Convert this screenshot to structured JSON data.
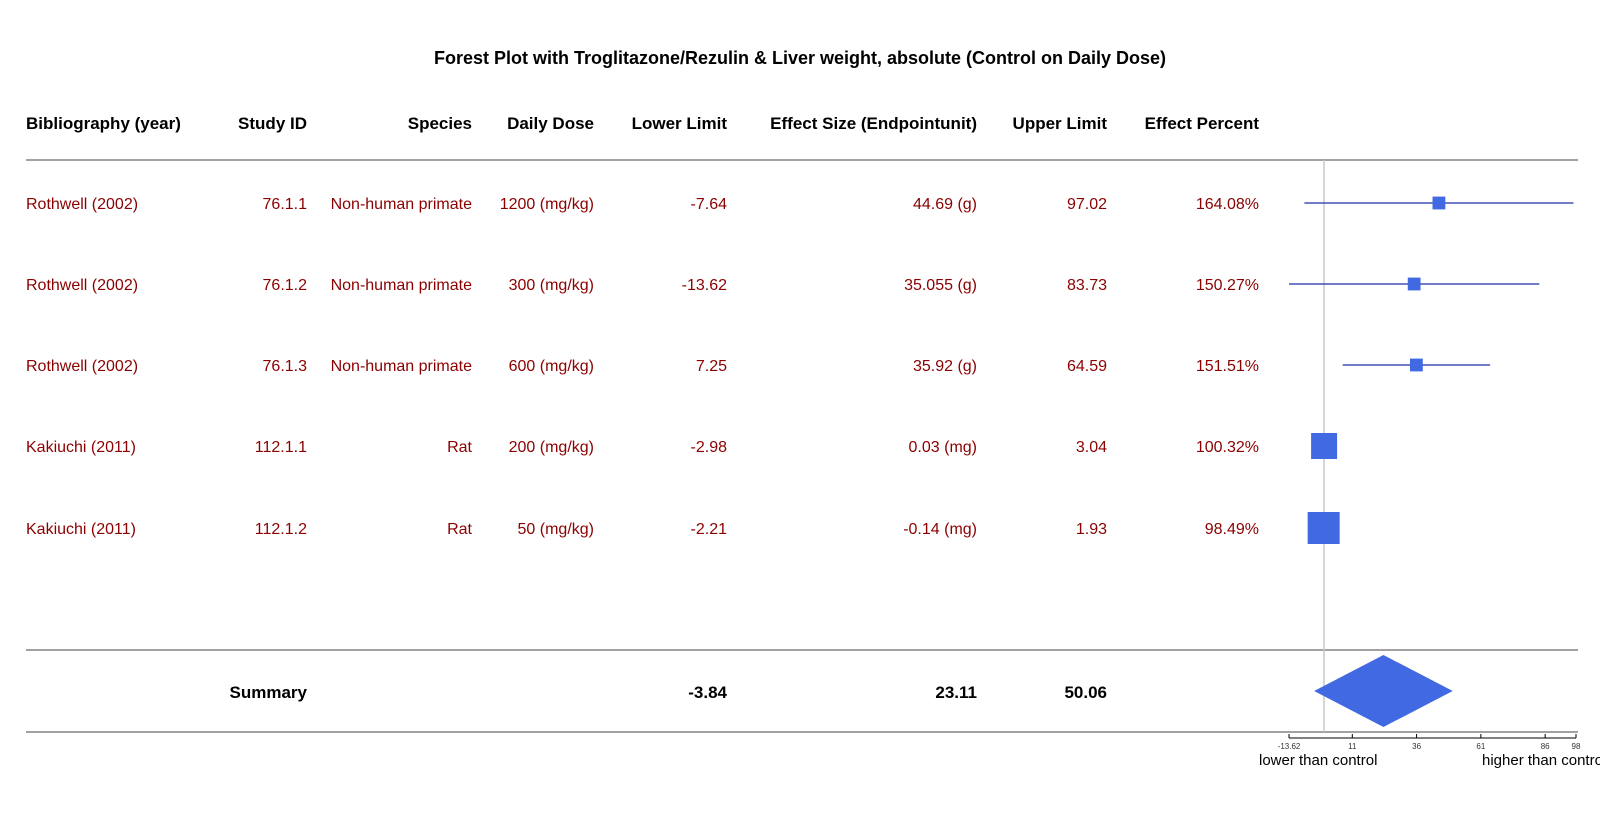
{
  "chart_data": {
    "type": "forest",
    "title": "Forest Plot with Troglitazone/Rezulin & Liver weight, absolute (Control on Daily Dose)",
    "columns": [
      "Bibliography (year)",
      "Study ID",
      "Species",
      "Daily Dose",
      "Lower Limit",
      "Effect Size (Endpointunit)",
      "Upper Limit",
      "Effect Percent"
    ],
    "rows": [
      {
        "bibliography": "Rothwell (2002)",
        "study_id": "76.1.1",
        "species": "Non-human primate",
        "daily_dose": "1200 (mg/kg)",
        "lower": "-7.64",
        "effect": "44.69 (g)",
        "upper": "97.02",
        "percent": "164.08%",
        "lower_value": -7.64,
        "effect_value": 44.69,
        "upper_value": 97.02,
        "weight": 0.2
      },
      {
        "bibliography": "Rothwell (2002)",
        "study_id": "76.1.2",
        "species": "Non-human primate",
        "daily_dose": "300 (mg/kg)",
        "lower": "-13.62",
        "effect": "35.055 (g)",
        "upper": "83.73",
        "percent": "150.27%",
        "lower_value": -13.62,
        "effect_value": 35.055,
        "upper_value": 83.73,
        "weight": 0.2
      },
      {
        "bibliography": "Rothwell (2002)",
        "study_id": "76.1.3",
        "species": "Non-human primate",
        "daily_dose": "600 (mg/kg)",
        "lower": "7.25",
        "effect": "35.92 (g)",
        "upper": "64.59",
        "percent": "151.51%",
        "lower_value": 7.25,
        "effect_value": 35.92,
        "upper_value": 64.59,
        "weight": 0.2
      },
      {
        "bibliography": "Kakiuchi (2011)",
        "study_id": "112.1.1",
        "species": "Rat",
        "daily_dose": "200 (mg/kg)",
        "lower": "-2.98",
        "effect": "0.03 (mg)",
        "upper": "3.04",
        "percent": "100.32%",
        "lower_value": -2.98,
        "effect_value": 0.03,
        "upper_value": 3.04,
        "weight": 0.75
      },
      {
        "bibliography": "Kakiuchi (2011)",
        "study_id": "112.1.2",
        "species": "Rat",
        "daily_dose": "50 (mg/kg)",
        "lower": "-2.21",
        "effect": "-0.14 (mg)",
        "upper": "1.93",
        "percent": "98.49%",
        "lower_value": -2.21,
        "effect_value": -0.14,
        "upper_value": 1.93,
        "weight": 1.0
      }
    ],
    "summary": {
      "label": "Summary",
      "lower": "-3.84",
      "effect": "23.11",
      "upper": "50.06",
      "lower_value": -3.84,
      "effect_value": 23.11,
      "upper_value": 50.06
    },
    "reference_line": 0,
    "xlim": [
      -13.62,
      98
    ],
    "x_ticks": [
      {
        "label": "-13.62",
        "value": -13.62
      },
      {
        "label": "11",
        "value": 11
      },
      {
        "label": "36",
        "value": 36
      },
      {
        "label": "61",
        "value": 61
      },
      {
        "label": "86",
        "value": 86
      },
      {
        "label": "98",
        "value": 98
      }
    ],
    "axis_labels": {
      "left": "lower than control",
      "right": "higher than control"
    },
    "colors": {
      "text": "#8b0000",
      "header": "#000000",
      "marker": "#4169e1",
      "ci_line": "#1f2fa8",
      "reference": "#c8c8c8",
      "rule": "#444444"
    }
  }
}
